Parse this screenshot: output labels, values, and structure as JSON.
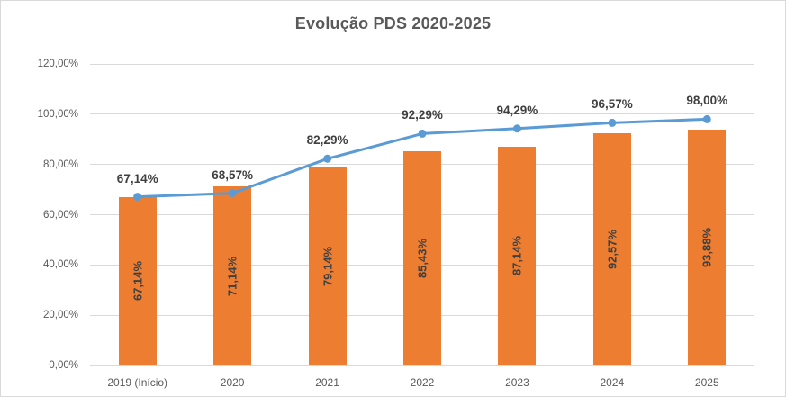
{
  "chart_data": {
    "type": "combo",
    "title": "Evolução PDS 2020-2025",
    "categories": [
      "2019 (Início)",
      "2020",
      "2021",
      "2022",
      "2023",
      "2024",
      "2025"
    ],
    "series": [
      {
        "name": "bars",
        "type": "bar",
        "color": "#ED7D31",
        "values": [
          67.14,
          71.14,
          79.14,
          85.43,
          87.14,
          92.57,
          93.88
        ],
        "labels": [
          "67,14%",
          "71,14%",
          "79,14%",
          "85,43%",
          "87,14%",
          "92,57%",
          "93,88%"
        ],
        "label_position": "center-inside-rotated"
      },
      {
        "name": "line",
        "type": "line",
        "color": "#5B9BD5",
        "values": [
          67.14,
          68.57,
          82.29,
          92.29,
          94.29,
          96.57,
          98.0
        ],
        "labels": [
          "67,14%",
          "68,57%",
          "82,29%",
          "92,29%",
          "94,29%",
          "96,57%",
          "98,00%"
        ],
        "label_position": "above",
        "marker": "circle"
      }
    ],
    "y_axis": {
      "min": 0,
      "max": 120,
      "step": 20,
      "tick_labels": [
        "0,00%",
        "20,00%",
        "40,00%",
        "60,00%",
        "80,00%",
        "100,00%",
        "120,00%"
      ]
    },
    "grid": true,
    "legend": "none",
    "colors": {
      "bar": "#ED7D31",
      "line": "#5B9BD5",
      "gridline": "#D9D9D9",
      "title_text": "#595959",
      "axis_text": "#595959",
      "data_label_text": "#404040",
      "background": "#FFFFFF"
    }
  }
}
